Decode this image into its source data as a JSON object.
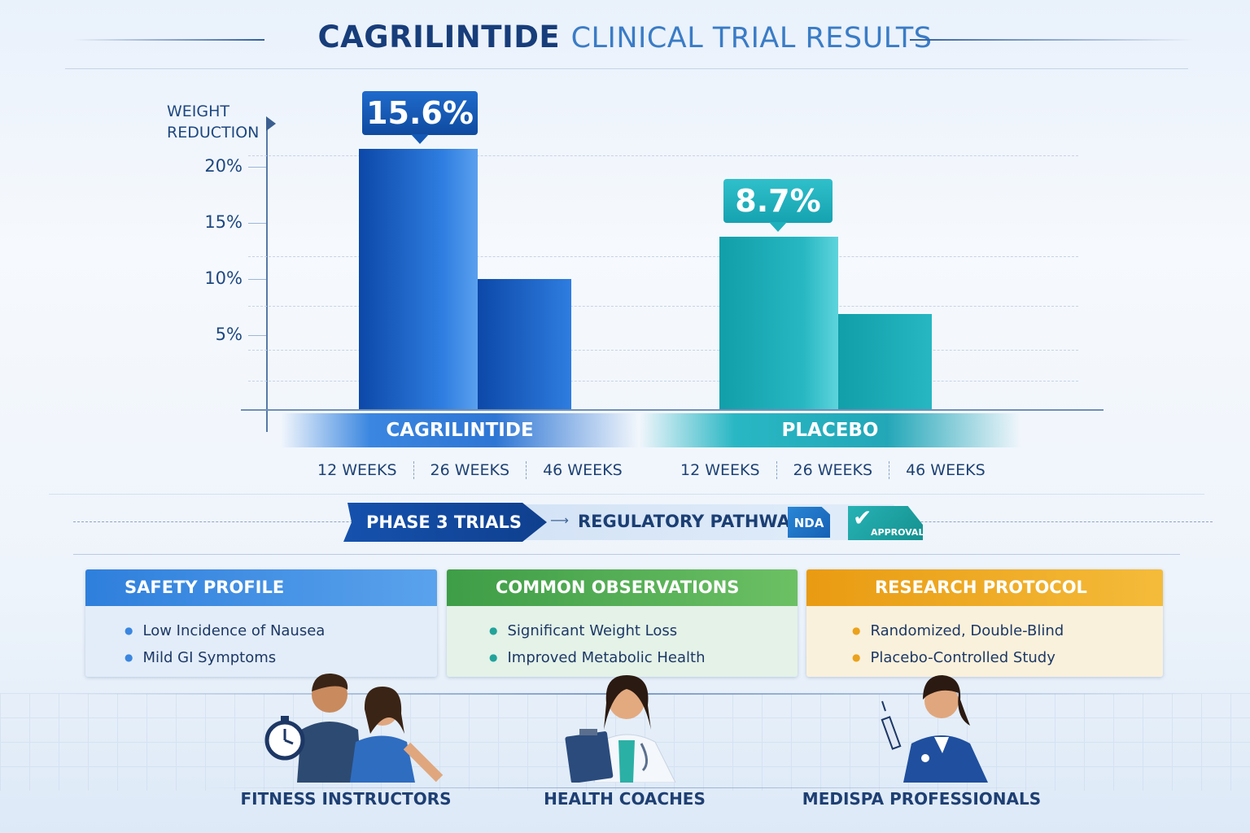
{
  "title": {
    "main": "CAGRILINTIDE",
    "sub": "CLINICAL TRIAL RESULTS"
  },
  "chart_data": {
    "type": "bar",
    "ylabel": "WEIGHT REDUCTION",
    "yticks": [
      "5%",
      "10%",
      "15%",
      "20%"
    ],
    "groups": [
      {
        "name": "CAGRILINTIDE",
        "weeks": [
          "12 WEEKS",
          "26 WEEKS",
          "46 WEEKS"
        ],
        "bar_values": [
          21.6,
          10.0
        ],
        "callout": "15.6%",
        "color": "#1f63cc"
      },
      {
        "name": "PLACEBO",
        "weeks": [
          "12 WEEKS",
          "26 WEEKS",
          "46 WEEKS"
        ],
        "bar_values": [
          13.8,
          6.9
        ],
        "callout": "8.7%",
        "color": "#1fb3c0"
      }
    ],
    "grid": true
  },
  "pathway": {
    "phase": "PHASE 3 TRIALS",
    "regulatory": "REGULATORY PATHWAY",
    "nda": "NDA",
    "approval": "APPROVAL"
  },
  "cards": [
    {
      "title": "SAFETY PROFILE",
      "items": [
        "Low Incidence of Nausea",
        "Mild GI Symptoms"
      ],
      "color": "#3d8de3",
      "dot": "#3a86e0"
    },
    {
      "title": "COMMON OBSERVATIONS",
      "items": [
        "Significant Weight Loss",
        "Improved Metabolic Health"
      ],
      "color": "#4aa852",
      "dot": "#22a39a"
    },
    {
      "title": "RESEARCH PROTOCOL",
      "items": [
        "Randomized, Double-Blind",
        "Placebo-Controlled Study"
      ],
      "color": "#eda624",
      "dot": "#eba21c"
    }
  ],
  "audiences": [
    "FITNESS INSTRUCTORS",
    "HEALTH COACHES",
    "MEDISPA PROFESSIONALS"
  ]
}
